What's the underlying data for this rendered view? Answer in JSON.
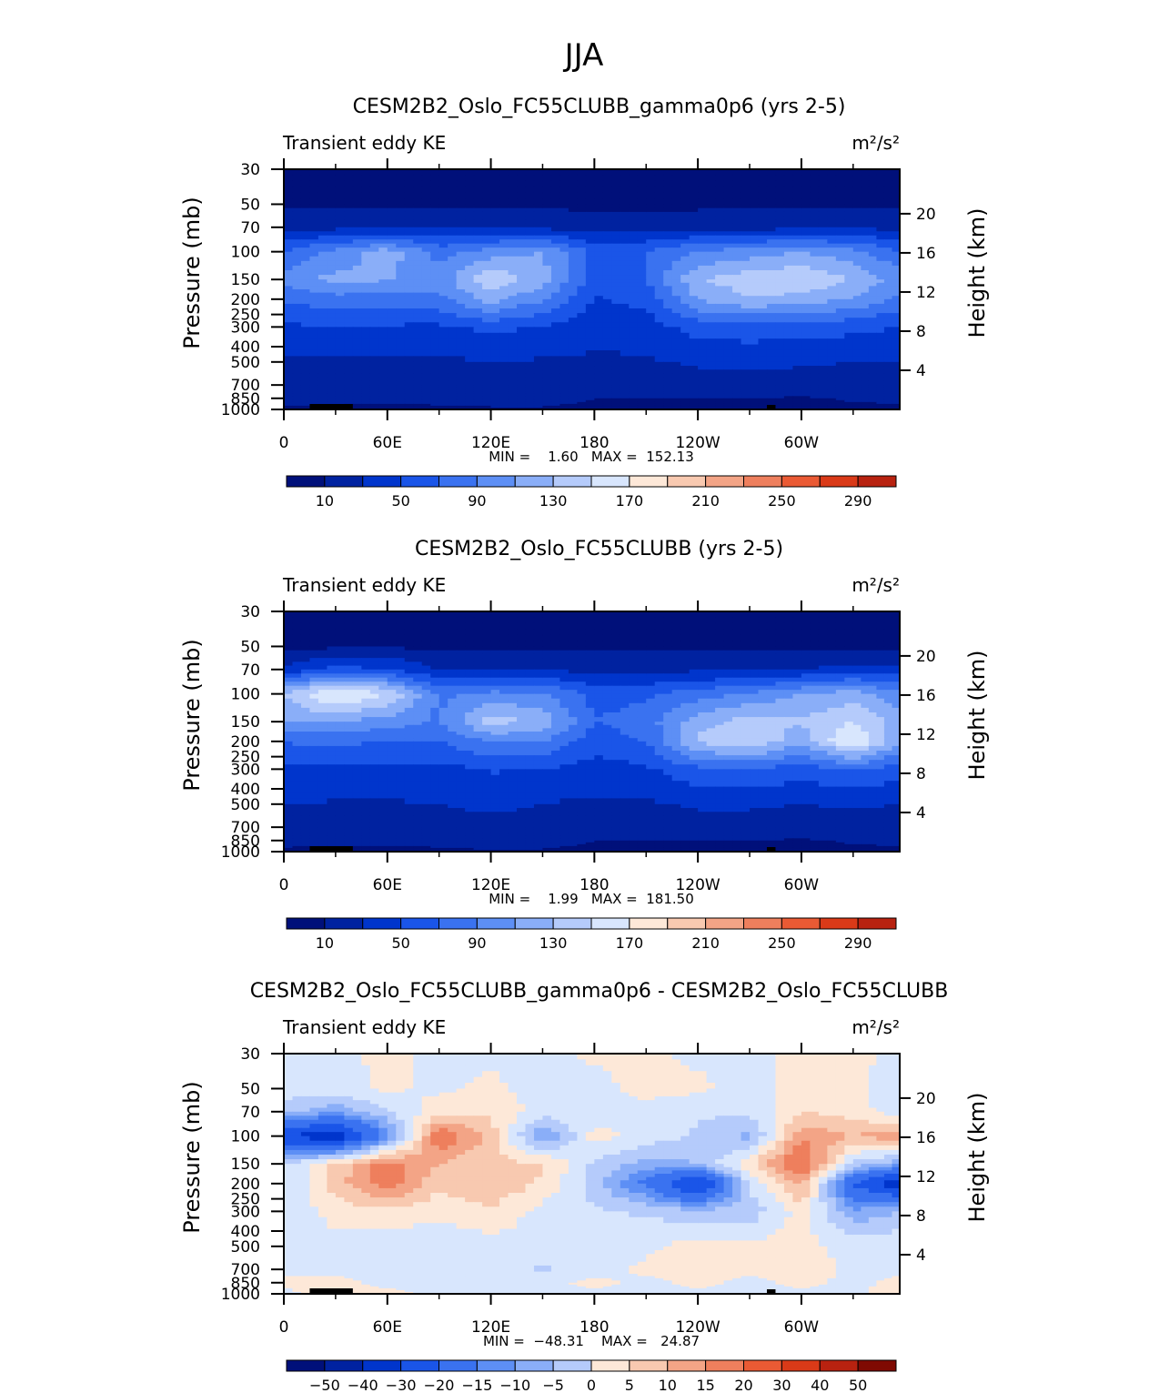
{
  "figure": {
    "title": "JJA"
  },
  "colors": {
    "abs": [
      "#00107a",
      "#0022a0",
      "#0035cc",
      "#1a55e8",
      "#3a72f0",
      "#5d8ff5",
      "#8aaef8",
      "#b5cbfb",
      "#d8e6fd",
      "#fde8d8",
      "#f8c9b0",
      "#f3a486",
      "#ee7f5d",
      "#ea5a34",
      "#da3a18",
      "#b82210",
      "#7f0a02"
    ],
    "diff": [
      "#00107a",
      "#0022a0",
      "#0035cc",
      "#1a55e8",
      "#3a72f0",
      "#5d8ff5",
      "#8aaef8",
      "#b5cbfb",
      "#d8e6fd",
      "#fde8d8",
      "#f8c9b0",
      "#f3a486",
      "#ee7f5d",
      "#ea5a34",
      "#da3a18",
      "#b82210",
      "#7f0a02"
    ]
  },
  "chart_data": [
    {
      "type": "heatmap",
      "title": "CESM2B2_Oslo_FC55CLUBB_gamma0p6 (yrs 2-5)",
      "left_subtitle": "Transient eddy KE",
      "units": "m²/s²",
      "ylabel": "Pressure (mb)",
      "y2label": "Height (km)",
      "x_ticks": [
        "0",
        "60E",
        "120E",
        "180",
        "120W",
        "60W"
      ],
      "y_ticks": [
        "30",
        "50",
        "70",
        "100",
        "150",
        "200",
        "250",
        "300",
        "400",
        "500",
        "700",
        "850",
        "1000"
      ],
      "y2_ticks": [
        "20",
        "16",
        "12",
        "8",
        "4"
      ],
      "ylim": [
        1000,
        30
      ],
      "xlim": [
        0,
        357
      ],
      "min_max_text": "MIN =    1.60   MAX =  152.13",
      "min": 1.6,
      "max": 152.13,
      "colorbar_labels": [
        "10",
        "50",
        "90",
        "130",
        "170",
        "210",
        "250",
        "290"
      ],
      "colorbar_levels": [
        10,
        30,
        50,
        70,
        90,
        110,
        130,
        150,
        170,
        190,
        210,
        230,
        250,
        270,
        290
      ],
      "lon_x": [
        0,
        30,
        60,
        90,
        120,
        150,
        180,
        210,
        240,
        270,
        300,
        330,
        357
      ],
      "pres_y": [
        30,
        50,
        70,
        100,
        150,
        200,
        300,
        500,
        700,
        850,
        1000
      ],
      "values": [
        [
          3,
          3,
          4,
          3,
          3,
          3,
          3,
          3,
          3,
          3,
          3,
          3,
          3
        ],
        [
          6,
          6,
          7,
          7,
          7,
          6,
          6,
          6,
          6,
          6,
          6,
          6,
          6
        ],
        [
          22,
          24,
          26,
          28,
          26,
          24,
          20,
          20,
          22,
          22,
          24,
          26,
          24
        ],
        [
          72,
          96,
          120,
          82,
          100,
          110,
          64,
          70,
          92,
          100,
          110,
          96,
          72
        ],
        [
          100,
          116,
          112,
          100,
          146,
          120,
          60,
          70,
          128,
          142,
          150,
          130,
          100
        ],
        [
          72,
          82,
          78,
          84,
          118,
          92,
          48,
          56,
          112,
          128,
          122,
          108,
          84
        ],
        [
          46,
          50,
          48,
          46,
          56,
          48,
          38,
          40,
          58,
          62,
          60,
          56,
          50
        ],
        [
          28,
          26,
          24,
          26,
          30,
          28,
          26,
          28,
          32,
          34,
          32,
          30,
          30
        ],
        [
          22,
          22,
          20,
          22,
          22,
          22,
          22,
          22,
          24,
          24,
          22,
          22,
          22
        ],
        [
          16,
          16,
          14,
          16,
          16,
          16,
          10,
          10,
          10,
          10,
          8,
          12,
          14
        ],
        [
          6,
          6,
          6,
          6,
          8,
          8,
          6,
          6,
          6,
          6,
          4,
          6,
          6
        ]
      ]
    },
    {
      "type": "heatmap",
      "title": "CESM2B2_Oslo_FC55CLUBB (yrs 2-5)",
      "left_subtitle": "Transient eddy KE",
      "units": "m²/s²",
      "ylabel": "Pressure (mb)",
      "y2label": "Height (km)",
      "x_ticks": [
        "0",
        "60E",
        "120E",
        "180",
        "120W",
        "60W"
      ],
      "y_ticks": [
        "30",
        "50",
        "70",
        "100",
        "150",
        "200",
        "250",
        "300",
        "400",
        "500",
        "700",
        "850",
        "1000"
      ],
      "y2_ticks": [
        "20",
        "16",
        "12",
        "8",
        "4"
      ],
      "ylim": [
        1000,
        30
      ],
      "xlim": [
        0,
        357
      ],
      "min_max_text": "MIN =    1.99   MAX =  181.50",
      "min": 1.99,
      "max": 181.5,
      "colorbar_labels": [
        "10",
        "50",
        "90",
        "130",
        "170",
        "210",
        "250",
        "290"
      ],
      "colorbar_levels": [
        10,
        30,
        50,
        70,
        90,
        110,
        130,
        150,
        170,
        190,
        210,
        230,
        250,
        270,
        290
      ],
      "lon_x": [
        0,
        30,
        60,
        90,
        120,
        150,
        180,
        210,
        240,
        270,
        300,
        330,
        357
      ],
      "pres_y": [
        30,
        50,
        70,
        100,
        150,
        200,
        300,
        500,
        700,
        850,
        1000
      ],
      "values": [
        [
          3,
          3,
          3,
          3,
          3,
          3,
          3,
          3,
          3,
          3,
          3,
          3,
          3
        ],
        [
          6,
          6,
          7,
          7,
          7,
          6,
          6,
          6,
          6,
          6,
          6,
          6,
          6
        ],
        [
          36,
          56,
          52,
          30,
          28,
          28,
          22,
          22,
          26,
          26,
          30,
          36,
          34
        ],
        [
          132,
          176,
          150,
          86,
          96,
          94,
          62,
          66,
          80,
          92,
          110,
          120,
          96
        ],
        [
          110,
          112,
          100,
          88,
          140,
          124,
          70,
          80,
          122,
          138,
          132,
          150,
          120
        ],
        [
          72,
          74,
          70,
          70,
          92,
          90,
          58,
          72,
          134,
          150,
          116,
          176,
          110
        ],
        [
          44,
          48,
          44,
          44,
          52,
          50,
          42,
          46,
          66,
          70,
          60,
          70,
          60
        ],
        [
          30,
          28,
          28,
          30,
          34,
          30,
          26,
          28,
          32,
          32,
          30,
          32,
          30
        ],
        [
          22,
          22,
          20,
          22,
          24,
          22,
          22,
          22,
          24,
          24,
          22,
          24,
          22
        ],
        [
          16,
          14,
          14,
          16,
          18,
          16,
          10,
          10,
          10,
          10,
          8,
          12,
          14
        ],
        [
          6,
          6,
          6,
          6,
          8,
          8,
          6,
          6,
          6,
          6,
          4,
          6,
          6
        ]
      ]
    },
    {
      "type": "heatmap",
      "title": "CESM2B2_Oslo_FC55CLUBB_gamma0p6 - CESM2B2_Oslo_FC55CLUBB",
      "left_subtitle": "Transient eddy KE",
      "units": "m²/s²",
      "ylabel": "Pressure (mb)",
      "y2label": "Height (km)",
      "x_ticks": [
        "0",
        "60E",
        "120E",
        "180",
        "120W",
        "60W"
      ],
      "y_ticks": [
        "30",
        "50",
        "70",
        "100",
        "150",
        "200",
        "250",
        "300",
        "400",
        "500",
        "700",
        "850",
        "1000"
      ],
      "y2_ticks": [
        "20",
        "16",
        "12",
        "8",
        "4"
      ],
      "ylim": [
        1000,
        30
      ],
      "xlim": [
        0,
        357
      ],
      "min_max_text": "MIN =  −48.31    MAX =   24.87",
      "min": -48.31,
      "max": 24.87,
      "colorbar_labels": [
        "−50",
        "−40",
        "−30",
        "−20",
        "−15",
        "−10",
        "−5",
        "0",
        "5",
        "10",
        "15",
        "20",
        "30",
        "40",
        "50"
      ],
      "colorbar_levels": [
        -50,
        -40,
        -30,
        -20,
        -15,
        -10,
        -5,
        0,
        5,
        10,
        15,
        20,
        30,
        40,
        50
      ],
      "lon_x": [
        0,
        30,
        60,
        90,
        120,
        150,
        180,
        210,
        240,
        270,
        300,
        330,
        357
      ],
      "pres_y": [
        30,
        50,
        70,
        100,
        150,
        200,
        300,
        500,
        700,
        850,
        1000
      ],
      "values": [
        [
          -1,
          -1,
          1,
          -1,
          -1,
          -1,
          1,
          1,
          -1,
          -1,
          1,
          1,
          -1
        ],
        [
          -2,
          -2,
          1,
          -1,
          1,
          -2,
          -2,
          2,
          1,
          -2,
          2,
          1,
          -2
        ],
        [
          -8,
          -14,
          -6,
          3,
          4,
          -2,
          -3,
          -2,
          -4,
          -4,
          5,
          3,
          -4
        ],
        [
          -40,
          -48,
          -18,
          20,
          8,
          -16,
          2,
          -2,
          -6,
          -12,
          14,
          10,
          14
        ],
        [
          -6,
          6,
          18,
          10,
          6,
          6,
          -6,
          -12,
          -10,
          4,
          22,
          -6,
          -14
        ],
        [
          -6,
          8,
          18,
          6,
          10,
          4,
          -8,
          -22,
          -44,
          -4,
          12,
          -30,
          -48
        ],
        [
          -4,
          2,
          4,
          2,
          4,
          -2,
          -4,
          -6,
          -8,
          -8,
          2,
          -14,
          -10
        ],
        [
          -2,
          -2,
          -4,
          -4,
          -2,
          -2,
          -2,
          -1,
          2,
          1,
          2,
          -2,
          -1
        ],
        [
          -1,
          -1,
          -1,
          -1,
          -1,
          -6,
          -2,
          1,
          2,
          1,
          2,
          -1,
          -1
        ],
        [
          1,
          1,
          -1,
          -1,
          -1,
          -1,
          1,
          -1,
          1,
          -1,
          1,
          -1,
          1
        ],
        [
          -1,
          2,
          1,
          -1,
          -1,
          -1,
          -1,
          -1,
          -1,
          -1,
          -1,
          -1,
          2
        ]
      ]
    }
  ]
}
